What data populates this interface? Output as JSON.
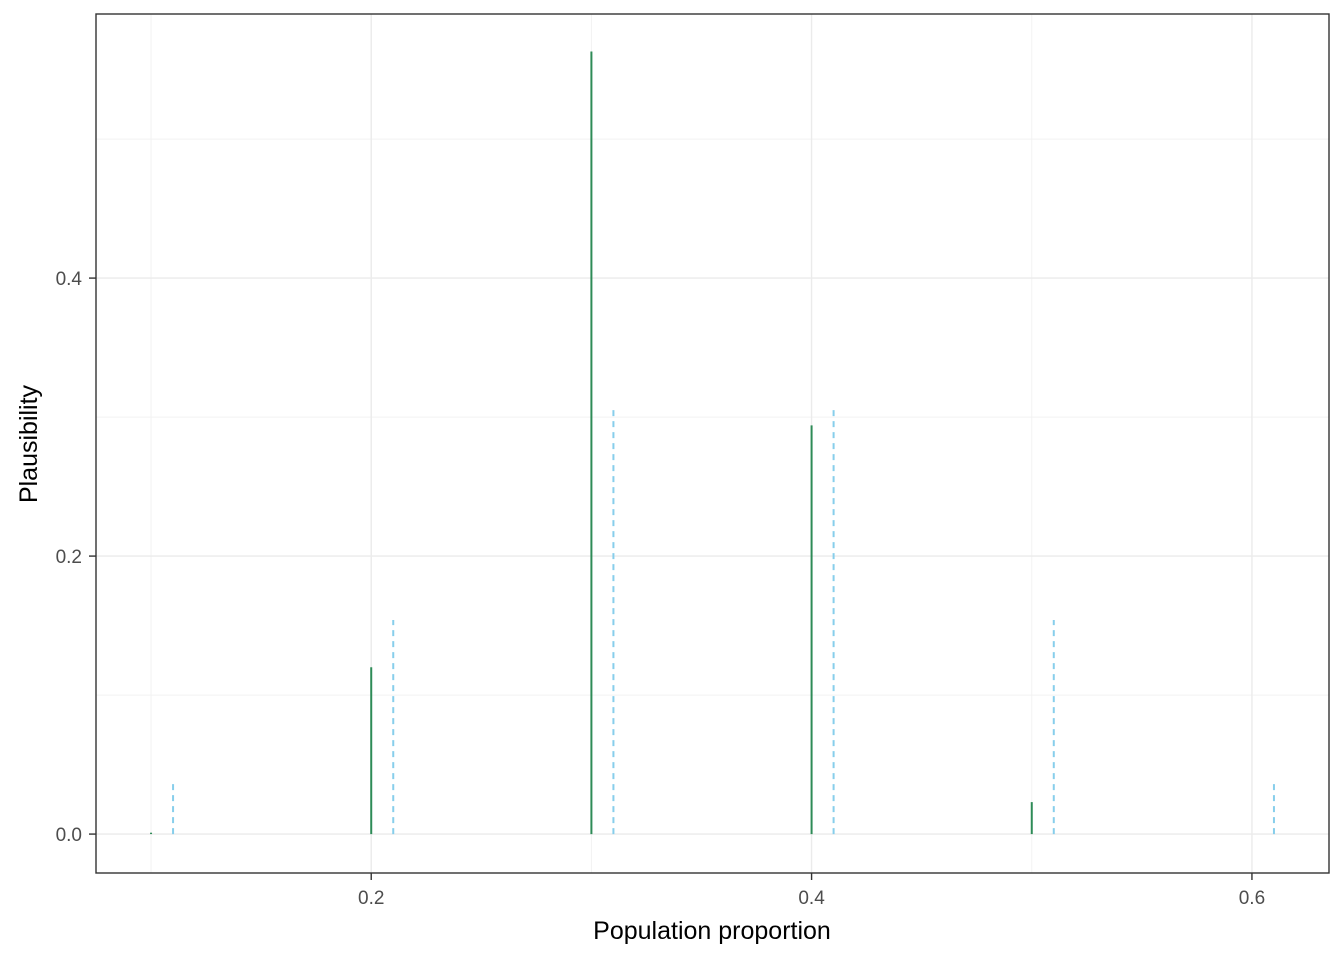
{
  "chart_data": {
    "type": "line",
    "xlabel": "Population proportion",
    "ylabel": "Plausibility",
    "xlim": [
      0.075,
      0.635
    ],
    "ylim": [
      -0.028,
      0.59
    ],
    "x_ticks": [
      0.2,
      0.4,
      0.6
    ],
    "x_tick_labels": [
      "0.2",
      "0.4",
      "0.6"
    ],
    "x_minor_ticks": [
      0.1,
      0.3,
      0.5
    ],
    "y_ticks": [
      0.0,
      0.2,
      0.4
    ],
    "y_tick_labels": [
      "0.0",
      "0.2",
      "0.4"
    ],
    "y_minor_ticks": [
      0.1,
      0.3,
      0.5
    ],
    "grid": true,
    "legend": "none",
    "series": [
      {
        "style": "solid",
        "color": "#2e8b57",
        "x": [
          0.1,
          0.2,
          0.3,
          0.4,
          0.5,
          0.6
        ],
        "y": [
          0.001,
          0.12,
          0.563,
          0.294,
          0.023,
          0.0
        ]
      },
      {
        "style": "dashed",
        "color": "#87ceeb",
        "x": [
          0.11,
          0.21,
          0.31,
          0.41,
          0.51,
          0.61
        ],
        "y": [
          0.039,
          0.154,
          0.308,
          0.308,
          0.154,
          0.039
        ]
      }
    ]
  }
}
